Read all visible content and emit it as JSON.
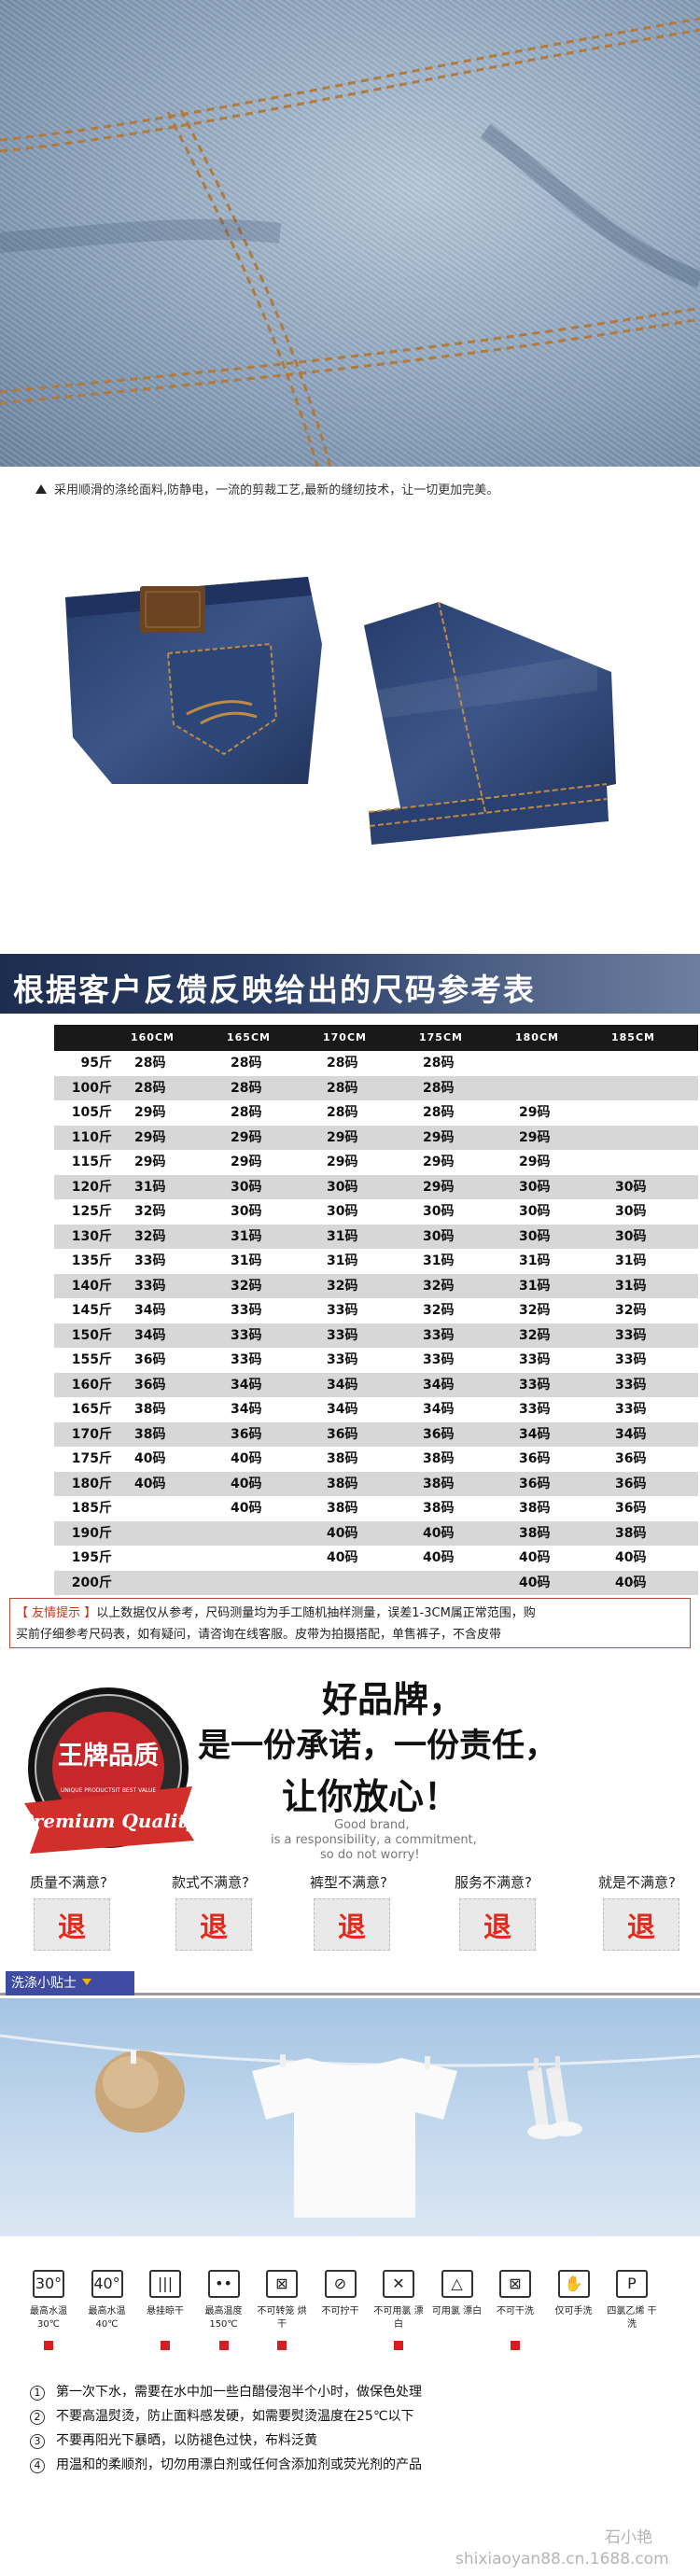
{
  "caption": "采用顺滑的涤纶面料,防静电，一流的剪裁工艺,最新的缝纫技术，让一切更加完美。",
  "size_table": {
    "title": "根据客户反馈反映给出的尺码参考表",
    "heights": [
      "160CM",
      "165CM",
      "170CM",
      "175CM",
      "180CM",
      "185CM"
    ],
    "rows": [
      {
        "weight": "95斤",
        "sizes": [
          "28码",
          "28码",
          "28码",
          "28码",
          "",
          ""
        ]
      },
      {
        "weight": "100斤",
        "sizes": [
          "28码",
          "28码",
          "28码",
          "28码",
          "",
          ""
        ]
      },
      {
        "weight": "105斤",
        "sizes": [
          "29码",
          "28码",
          "28码",
          "28码",
          "29码",
          ""
        ]
      },
      {
        "weight": "110斤",
        "sizes": [
          "29码",
          "29码",
          "29码",
          "29码",
          "29码",
          ""
        ]
      },
      {
        "weight": "115斤",
        "sizes": [
          "29码",
          "29码",
          "29码",
          "29码",
          "29码",
          ""
        ]
      },
      {
        "weight": "120斤",
        "sizes": [
          "31码",
          "30码",
          "30码",
          "29码",
          "30码",
          "30码"
        ]
      },
      {
        "weight": "125斤",
        "sizes": [
          "32码",
          "30码",
          "30码",
          "30码",
          "30码",
          "30码"
        ]
      },
      {
        "weight": "130斤",
        "sizes": [
          "32码",
          "31码",
          "31码",
          "30码",
          "30码",
          "30码"
        ]
      },
      {
        "weight": "135斤",
        "sizes": [
          "33码",
          "31码",
          "31码",
          "31码",
          "31码",
          "31码"
        ]
      },
      {
        "weight": "140斤",
        "sizes": [
          "33码",
          "32码",
          "32码",
          "32码",
          "31码",
          "31码"
        ]
      },
      {
        "weight": "145斤",
        "sizes": [
          "34码",
          "33码",
          "33码",
          "32码",
          "32码",
          "32码"
        ]
      },
      {
        "weight": "150斤",
        "sizes": [
          "34码",
          "33码",
          "33码",
          "33码",
          "32码",
          "33码"
        ]
      },
      {
        "weight": "155斤",
        "sizes": [
          "36码",
          "33码",
          "33码",
          "33码",
          "33码",
          "33码"
        ]
      },
      {
        "weight": "160斤",
        "sizes": [
          "36码",
          "34码",
          "34码",
          "34码",
          "33码",
          "33码"
        ]
      },
      {
        "weight": "165斤",
        "sizes": [
          "38码",
          "34码",
          "34码",
          "34码",
          "33码",
          "33码"
        ]
      },
      {
        "weight": "170斤",
        "sizes": [
          "38码",
          "36码",
          "36码",
          "36码",
          "34码",
          "34码"
        ]
      },
      {
        "weight": "175斤",
        "sizes": [
          "40码",
          "40码",
          "38码",
          "38码",
          "36码",
          "36码"
        ]
      },
      {
        "weight": "180斤",
        "sizes": [
          "40码",
          "40码",
          "38码",
          "38码",
          "36码",
          "36码"
        ]
      },
      {
        "weight": "185斤",
        "sizes": [
          "",
          "40码",
          "38码",
          "38码",
          "38码",
          "36码"
        ]
      },
      {
        "weight": "190斤",
        "sizes": [
          "",
          "",
          "40码",
          "40码",
          "38码",
          "38码"
        ]
      },
      {
        "weight": "195斤",
        "sizes": [
          "",
          "",
          "40码",
          "40码",
          "40码",
          "40码"
        ]
      },
      {
        "weight": "200斤",
        "sizes": [
          "",
          "",
          "",
          "",
          "40码",
          "40码"
        ]
      }
    ]
  },
  "tip": {
    "label": "【 友情提示 】",
    "line1": "以上数据仅从参考，尺码测量均为手工随机抽样测量，误差1-3CM属正常范围，购",
    "line2": "买前仔细参考尺码表，如有疑问，请咨询在线客服。皮带为拍摄搭配，单售裤子，不含皮带"
  },
  "brand": {
    "seal_main": "王牌品质",
    "seal_arc": "UNIQUE PRODUCTSIT BEST VALUE",
    "seal_ribbon": "Premium Quality",
    "slogan_1": "好品牌，",
    "slogan_2": "是一份承诺，一份责任，",
    "slogan_3": "让你放心！",
    "en_1": "Good brand,",
    "en_2": "is a responsibility, a commitment,",
    "en_3": "so do not worry!"
  },
  "returns": [
    {
      "question": "质量不满意?",
      "action": "退"
    },
    {
      "question": "款式不满意?",
      "action": "退"
    },
    {
      "question": "裤型不满意?",
      "action": "退"
    },
    {
      "question": "服务不满意?",
      "action": "退"
    },
    {
      "question": "就是不满意?",
      "action": "退"
    }
  ],
  "washing": {
    "title": "洗涤小贴士",
    "care": [
      {
        "icon": "30°",
        "label": "最高水温 30℃",
        "icon_name": "wash-30-icon",
        "marked": true
      },
      {
        "icon": "40°",
        "label": "最高水温 40℃",
        "icon_name": "wash-40-icon",
        "marked": false
      },
      {
        "icon": "|||",
        "label": "悬挂晾干",
        "icon_name": "hang-dry-icon",
        "marked": true
      },
      {
        "icon": "••",
        "label": "最高温度 150℃",
        "icon_name": "iron-150-icon",
        "marked": true
      },
      {
        "icon": "⊠",
        "label": "不可转笼 烘干",
        "icon_name": "no-tumble-dry-icon",
        "marked": true
      },
      {
        "icon": "⊘",
        "label": "不可拧干",
        "icon_name": "no-wring-icon",
        "marked": false
      },
      {
        "icon": "✕",
        "label": "不可用氯 漂白",
        "icon_name": "no-chlorine-bleach-icon",
        "marked": true
      },
      {
        "icon": "△",
        "label": "可用氯 漂白",
        "icon_name": "chlorine-bleach-icon",
        "marked": false
      },
      {
        "icon": "⊠",
        "label": "不可干洗",
        "icon_name": "no-dry-clean-icon",
        "marked": true
      },
      {
        "icon": "✋",
        "label": "仅可手洗",
        "icon_name": "hand-wash-icon",
        "marked": false
      },
      {
        "icon": "P",
        "label": "四氯乙烯 干洗",
        "icon_name": "dry-clean-p-icon",
        "marked": false
      }
    ],
    "notes": [
      {
        "num": "1",
        "text": "第一次下水，需要在水中加一些白醋侵泡半个小时，做保色处理"
      },
      {
        "num": "2",
        "text": "不要高温熨烫，防止面料感发硬，如需要熨烫温度在25℃以下"
      },
      {
        "num": "3",
        "text": "不要再阳光下暴晒，以防褪色过快，布料泛黄"
      },
      {
        "num": "4",
        "text": "用温和的柔顺剂，切勿用漂白剂或任何含添加剂或荧光剂的产品"
      }
    ]
  },
  "watermark": "石小艳",
  "url": "shixiaoyan88.cn.1688.com",
  "colors": {
    "accent_red": "#e32a1c",
    "navy": "#1d2d4f",
    "tab_blue": "#3e4ba0",
    "denim": "#2f4778"
  }
}
